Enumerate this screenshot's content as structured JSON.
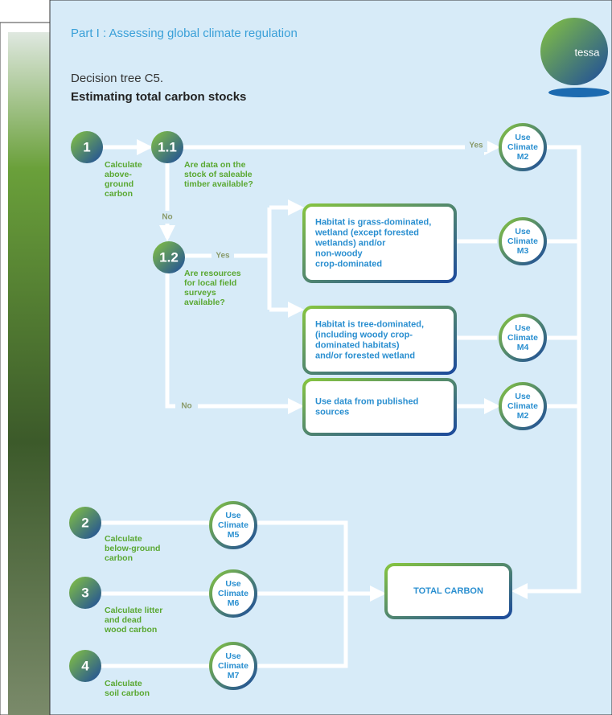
{
  "header": {
    "part": "Part I : Assessing global climate regulation",
    "subtitle": "Decision tree C5.",
    "title": "Estimating total carbon stocks",
    "logo": "tessa"
  },
  "steps": [
    {
      "number": "1",
      "label": [
        "Calculate",
        "above-",
        "ground",
        "carbon"
      ]
    },
    {
      "number": "2",
      "label": [
        "Calculate",
        "below-ground",
        "carbon"
      ]
    },
    {
      "number": "3",
      "label": [
        "Calculate litter",
        "and dead",
        "wood carbon"
      ]
    },
    {
      "number": "4",
      "label": [
        "Calculate",
        "soil carbon"
      ]
    }
  ],
  "questions": [
    {
      "number": "1.1",
      "text": [
        "Are data on the",
        "stock of saleable",
        "timber available?"
      ]
    },
    {
      "number": "1.2",
      "text": [
        "Are resources",
        "for local field",
        "surveys",
        "available?"
      ]
    }
  ],
  "boxes": [
    [
      "Habitat is grass-dominated,",
      "wetland (except forested",
      "wetlands) and/or",
      "non-woody",
      "crop-dominated"
    ],
    [
      "Habitat is tree-dominated,",
      "(including woody crop-",
      "dominated habitats)",
      "and/or forested wetland"
    ],
    [
      "Use data from published",
      "sources"
    ],
    [
      "TOTAL CARBON"
    ]
  ],
  "methods": [
    [
      "Use",
      "Climate",
      "M2"
    ],
    [
      "Use",
      "Climate",
      "M3"
    ],
    [
      "Use",
      "Climate",
      "M4"
    ],
    [
      "Use",
      "Climate",
      "M2"
    ],
    [
      "Use",
      "Climate",
      "M5"
    ],
    [
      "Use",
      "Climate",
      "M6"
    ],
    [
      "Use",
      "Climate",
      "M7"
    ]
  ],
  "edge_labels": [
    "Yes",
    "No",
    "Yes",
    "No"
  ]
}
